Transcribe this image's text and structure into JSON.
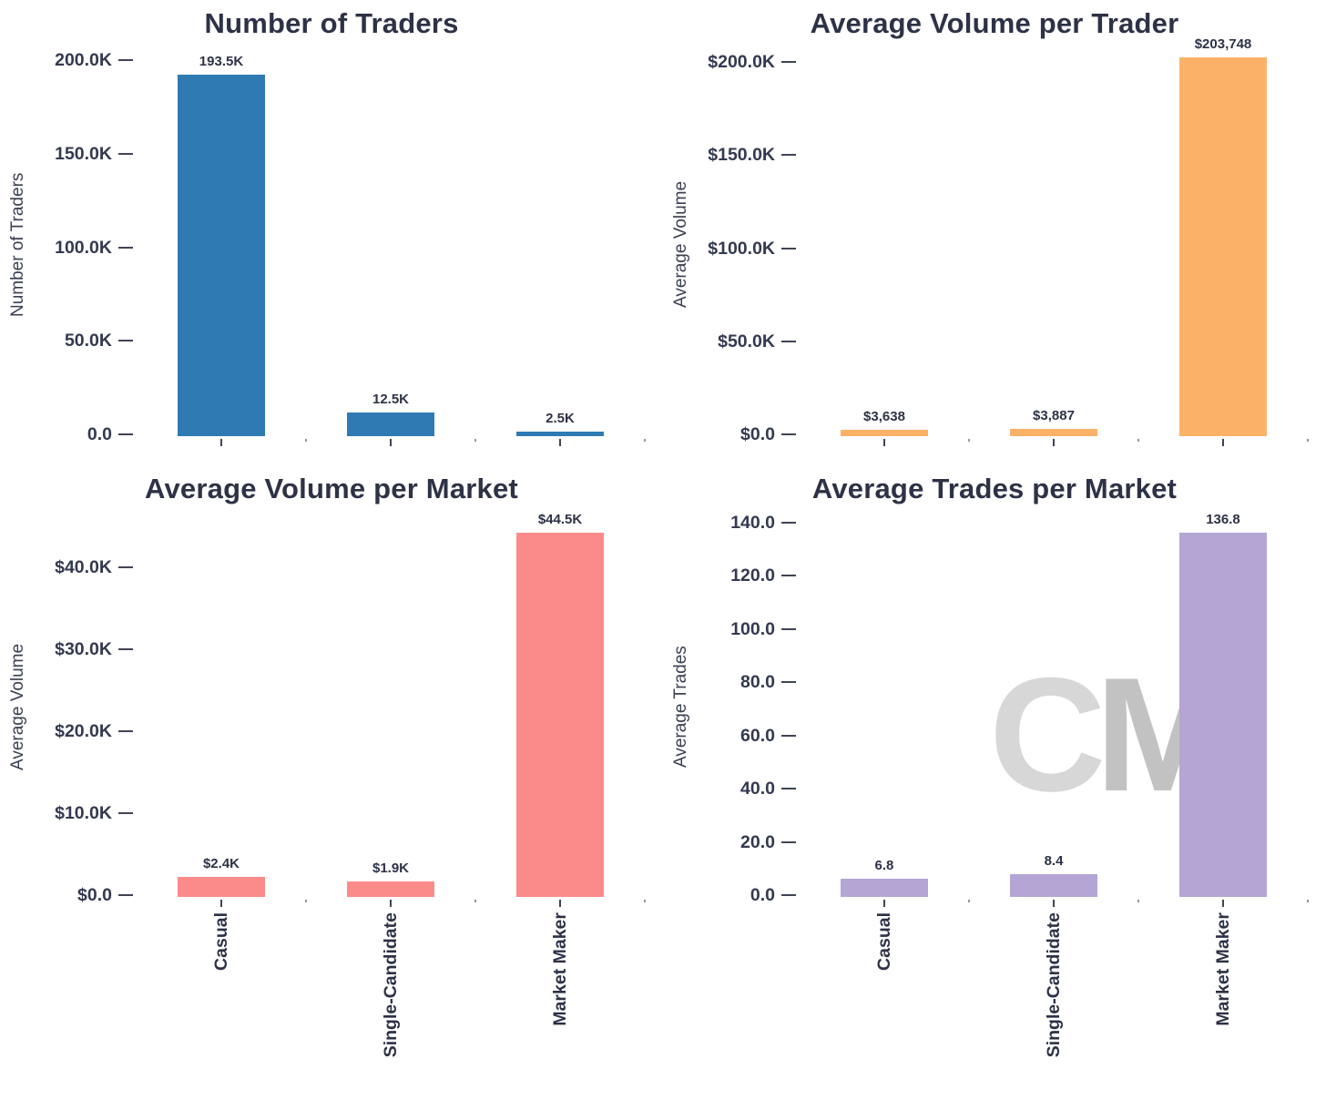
{
  "page": {
    "background": "#ffffff",
    "text_color": "#2f3447",
    "accent_colors": {
      "blue": "#2e7bb4",
      "orange": "#fbb268",
      "salmon": "#fb8b8b",
      "purple": "#b4a5d5"
    }
  },
  "watermark": {
    "c": "C",
    "m": "M"
  },
  "chart_data": [
    {
      "type": "bar",
      "title": "Number of Traders",
      "xlabel": "",
      "ylabel": "Number of Traders",
      "categories": [
        "Casual",
        "Single-Candidate",
        "Market Maker"
      ],
      "values": [
        193500,
        12500,
        2500
      ],
      "value_labels": [
        "193.5K",
        "12.5K",
        "2.5K"
      ],
      "yticks": [
        {
          "v": 0,
          "label": "0.0"
        },
        {
          "v": 50000,
          "label": "50.0K"
        },
        {
          "v": 100000,
          "label": "100.0K"
        },
        {
          "v": 150000,
          "label": "150.0K"
        },
        {
          "v": 200000,
          "label": "200.0K"
        }
      ],
      "ylim": [
        0,
        205000
      ],
      "bar_color": "#2e7bb4",
      "grid": false,
      "legend": "none",
      "show_x_labels": false
    },
    {
      "type": "bar",
      "title": "Average Volume per Trader",
      "xlabel": "",
      "ylabel": "Average Volume",
      "categories": [
        "Casual",
        "Single-Candidate",
        "Market Maker"
      ],
      "values": [
        3638,
        3887,
        203748
      ],
      "value_labels": [
        "$3,638",
        "$3,887",
        "$203,748"
      ],
      "yticks": [
        {
          "v": 0,
          "label": "$0.0"
        },
        {
          "v": 50000,
          "label": "$50.0K"
        },
        {
          "v": 100000,
          "label": "$100.0K"
        },
        {
          "v": 150000,
          "label": "$150.0K"
        },
        {
          "v": 200000,
          "label": "$200.0K"
        }
      ],
      "ylim": [
        0,
        206000
      ],
      "bar_color": "#fbb268",
      "grid": false,
      "legend": "none",
      "show_x_labels": false
    },
    {
      "type": "bar",
      "title": "Average Volume per Market",
      "xlabel": "",
      "ylabel": "Average Volume",
      "categories": [
        "Casual",
        "Single-Candidate",
        "Market Maker"
      ],
      "values": [
        2400,
        1900,
        44500
      ],
      "value_labels": [
        "$2.4K",
        "$1.9K",
        "$44.5K"
      ],
      "yticks": [
        {
          "v": 0,
          "label": "$0.0"
        },
        {
          "v": 10000,
          "label": "$10.0K"
        },
        {
          "v": 20000,
          "label": "$20.0K"
        },
        {
          "v": 30000,
          "label": "$30.0K"
        },
        {
          "v": 40000,
          "label": "$40.0K"
        }
      ],
      "ylim": [
        0,
        46500
      ],
      "bar_color": "#fb8b8b",
      "grid": false,
      "legend": "none",
      "show_x_labels": true
    },
    {
      "type": "bar",
      "title": "Average Trades per Market",
      "xlabel": "",
      "ylabel": "Average Trades",
      "categories": [
        "Casual",
        "Single-Candidate",
        "Market Maker"
      ],
      "values": [
        6.8,
        8.4,
        136.8
      ],
      "value_labels": [
        "6.8",
        "8.4",
        "136.8"
      ],
      "yticks": [
        {
          "v": 0,
          "label": "0.0"
        },
        {
          "v": 20,
          "label": "20.0"
        },
        {
          "v": 40,
          "label": "40.0"
        },
        {
          "v": 60,
          "label": "60.0"
        },
        {
          "v": 80,
          "label": "80.0"
        },
        {
          "v": 100,
          "label": "100.0"
        },
        {
          "v": 120,
          "label": "120.0"
        },
        {
          "v": 140,
          "label": "140.0"
        }
      ],
      "ylim": [
        0,
        143
      ],
      "bar_color": "#b4a5d5",
      "grid": false,
      "legend": "none",
      "show_x_labels": true
    }
  ]
}
